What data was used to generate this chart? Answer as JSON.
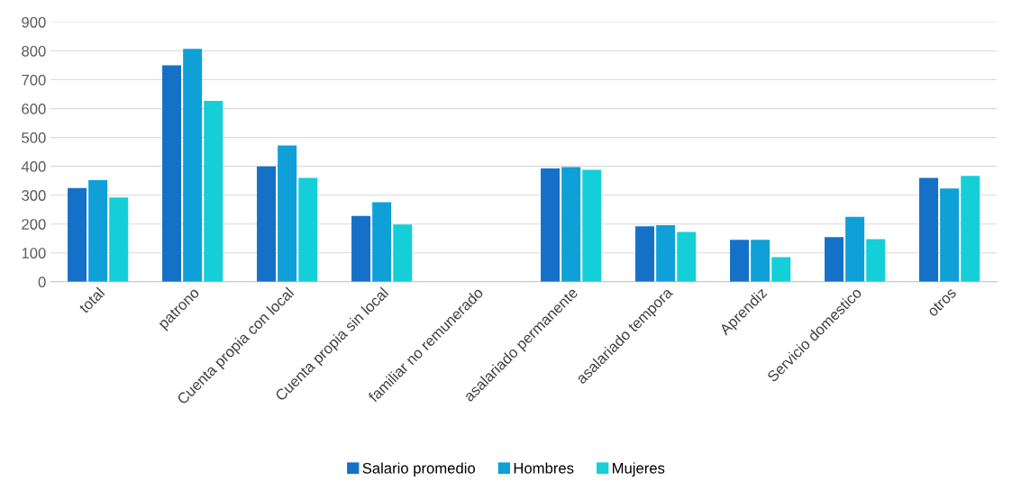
{
  "chart_data": {
    "type": "bar",
    "categories": [
      "total",
      "patrono",
      "Cuenta propia con local",
      "Cuenta propia sin local",
      "familiar no remunerado",
      "asalariado permanente",
      "asalariado tempora",
      "Aprendiz",
      "Servicio domestico",
      "otros"
    ],
    "series": [
      {
        "name": "Salario promedio",
        "color": "#1570c8",
        "values": [
          325,
          750,
          400,
          228,
          0,
          393,
          192,
          145,
          155,
          360
        ]
      },
      {
        "name": "Hombres",
        "color": "#0fa0d8",
        "values": [
          352,
          807,
          472,
          276,
          0,
          397,
          196,
          145,
          225,
          323
        ]
      },
      {
        "name": "Mujeres",
        "color": "#14cfd8",
        "values": [
          292,
          627,
          360,
          198,
          0,
          388,
          173,
          85,
          148,
          367
        ]
      }
    ],
    "ylim": [
      0,
      900
    ],
    "yticks": [
      0,
      100,
      200,
      300,
      400,
      500,
      600,
      700,
      800,
      900
    ],
    "grid": "y",
    "legend": "bottom"
  }
}
